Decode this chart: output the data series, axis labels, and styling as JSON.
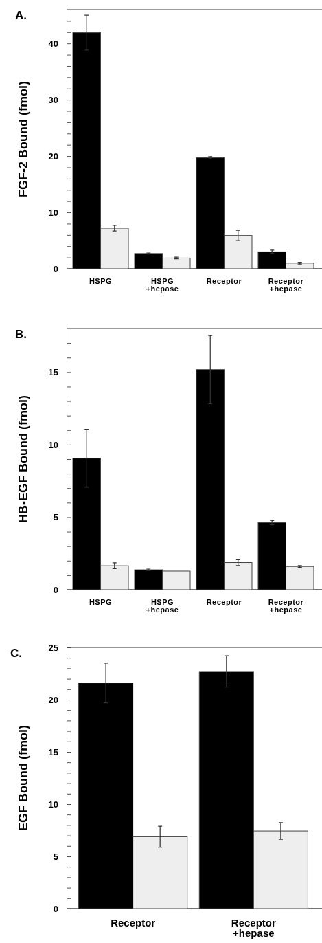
{
  "chart_data": [
    {
      "type": "bar",
      "title": "A.",
      "ylabel": "FGF-2 Bound (fmol)",
      "categories": [
        "HSPG",
        "HSPG\n+hepase",
        "Receptor",
        "Receptor\n+hepase"
      ],
      "ylim": [
        0,
        46
      ],
      "yticks": [
        0,
        {
          "value": 2,
          "label": null
        },
        {
          "value": 4,
          "label": null
        },
        {
          "value": 6,
          "label": null
        },
        {
          "value": 8,
          "label": null
        },
        10,
        {
          "value": 12,
          "label": null
        },
        {
          "value": 14,
          "label": null
        },
        {
          "value": 16,
          "label": null
        },
        {
          "value": 18,
          "label": null
        },
        20,
        {
          "value": 22,
          "label": null
        },
        {
          "value": 24,
          "label": null
        },
        {
          "value": 26,
          "label": null
        },
        {
          "value": 28,
          "label": null
        },
        30,
        {
          "value": 32,
          "label": null
        },
        {
          "value": 34,
          "label": null
        },
        {
          "value": 36,
          "label": null
        },
        {
          "value": 38,
          "label": null
        },
        40,
        {
          "value": 42,
          "label": null
        },
        {
          "value": 44,
          "label": null
        }
      ],
      "series": [
        {
          "color": "#000000",
          "values": [
            41.9,
            2.7,
            19.7,
            3.0
          ],
          "errors": [
            3.1,
            0.1,
            0.2,
            0.3
          ]
        },
        {
          "color": "#eeeeee",
          "values": [
            7.2,
            1.9,
            5.9,
            1.0
          ],
          "errors": [
            0.5,
            0.15,
            0.9,
            0.15
          ]
        }
      ]
    },
    {
      "type": "bar",
      "title": "B.",
      "ylabel": "HB-EGF Bound (fmol)",
      "categories": [
        "HSPG",
        "HSPG\n+hepase",
        "Receptor",
        "Receptor\n+hepase"
      ],
      "ylim": [
        0,
        18
      ],
      "yticks": [
        0,
        {
          "value": 1,
          "label": null
        },
        {
          "value": 2,
          "label": null
        },
        {
          "value": 3,
          "label": null
        },
        {
          "value": 4,
          "label": null
        },
        5,
        {
          "value": 6,
          "label": null
        },
        {
          "value": 7,
          "label": null
        },
        {
          "value": 8,
          "label": null
        },
        {
          "value": 9,
          "label": null
        },
        10,
        {
          "value": 11,
          "label": null
        },
        {
          "value": 12,
          "label": null
        },
        {
          "value": 13,
          "label": null
        },
        {
          "value": 14,
          "label": null
        },
        15,
        {
          "value": 16,
          "label": null
        },
        {
          "value": 17,
          "label": null
        }
      ],
      "series": [
        {
          "color": "#000000",
          "values": [
            9.06,
            1.37,
            15.17,
            4.62
          ],
          "errors": [
            2.0,
            0.05,
            2.35,
            0.15
          ]
        },
        {
          "color": "#eeeeee",
          "values": [
            1.65,
            1.28,
            1.87,
            1.6
          ],
          "errors": [
            0.2,
            null,
            0.2,
            0.07
          ]
        }
      ]
    },
    {
      "type": "bar",
      "title": "C.",
      "ylabel": "EGF Bound (fmol)",
      "categories": [
        "Receptor",
        "Receptor\n+hepase"
      ],
      "ylim": [
        0,
        25
      ],
      "yticks": [
        0,
        {
          "value": 1,
          "label": null
        },
        {
          "value": 2,
          "label": null
        },
        {
          "value": 3,
          "label": null
        },
        {
          "value": 4,
          "label": null
        },
        5,
        {
          "value": 6,
          "label": null
        },
        {
          "value": 7,
          "label": null
        },
        {
          "value": 8,
          "label": null
        },
        {
          "value": 9,
          "label": null
        },
        10,
        {
          "value": 11,
          "label": null
        },
        {
          "value": 12,
          "label": null
        },
        {
          "value": 13,
          "label": null
        },
        {
          "value": 14,
          "label": null
        },
        15,
        {
          "value": 16,
          "label": null
        },
        {
          "value": 17,
          "label": null
        },
        {
          "value": 18,
          "label": null
        },
        {
          "value": 19,
          "label": null
        },
        20,
        {
          "value": 21,
          "label": null
        },
        {
          "value": 22,
          "label": null
        },
        {
          "value": 23,
          "label": null
        },
        {
          "value": 24,
          "label": null
        },
        25
      ],
      "series": [
        {
          "color": "#000000",
          "values": [
            21.6,
            22.7
          ],
          "errors": [
            1.9,
            1.5
          ]
        },
        {
          "color": "#eeeeee",
          "values": [
            6.88,
            7.43
          ],
          "errors": [
            1.0,
            0.8
          ]
        }
      ]
    }
  ]
}
